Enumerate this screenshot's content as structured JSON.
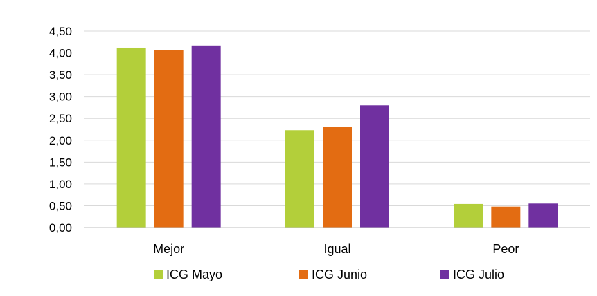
{
  "chart_data": {
    "type": "bar",
    "categories": [
      "Mejor",
      "Igual",
      "Peor"
    ],
    "series": [
      {
        "name": "ICG Mayo",
        "color": "#b3cf3a",
        "values": [
          4.12,
          2.23,
          0.54
        ]
      },
      {
        "name": "ICG Junio",
        "color": "#e36c12",
        "values": [
          4.07,
          2.31,
          0.48
        ]
      },
      {
        "name": "ICG Julio",
        "color": "#7030a0",
        "values": [
          4.17,
          2.8,
          0.55
        ]
      }
    ],
    "yticks": [
      "0,00",
      "0,50",
      "1,00",
      "1,50",
      "2,00",
      "2,50",
      "3,00",
      "3,50",
      "4,00",
      "4,50"
    ],
    "ylim": [
      0,
      4.5
    ],
    "grid": true,
    "legend": "bottom",
    "title": "",
    "xlabel": "",
    "ylabel": ""
  }
}
